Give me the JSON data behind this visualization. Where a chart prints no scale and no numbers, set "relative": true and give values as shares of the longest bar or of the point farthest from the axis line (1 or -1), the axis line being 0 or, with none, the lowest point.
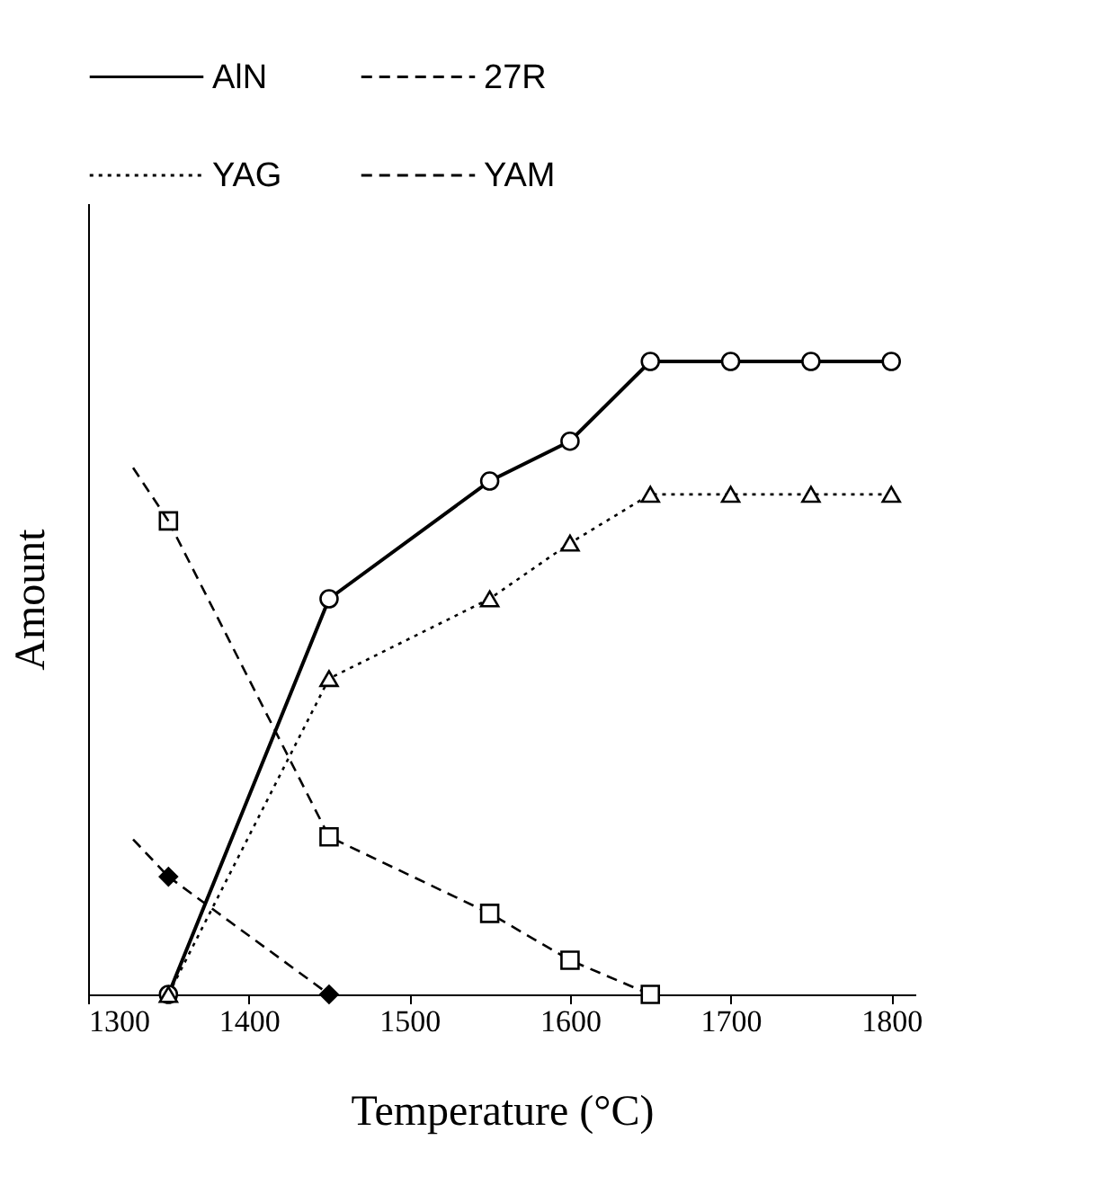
{
  "chart_data": {
    "type": "line",
    "xlabel": "Temperature (°C)",
    "ylabel": "Amount",
    "relative": true,
    "x": [
      1350,
      1450,
      1550,
      1600,
      1650,
      1700,
      1750,
      1800
    ],
    "xlim": [
      1300,
      1815
    ],
    "xticks": [
      {
        "value": 1300,
        "label": "1300"
      },
      {
        "value": 1400,
        "label": "1400"
      },
      {
        "value": 1500,
        "label": "1500"
      },
      {
        "value": 1600,
        "label": "1600"
      },
      {
        "value": 1700,
        "label": "1700"
      },
      {
        "value": 1800,
        "label": "1800"
      }
    ],
    "series": [
      {
        "name": "AlN",
        "color": "#000000",
        "marker": "circle",
        "line_style": "solid",
        "values": [
          0,
          0.625,
          0.811,
          0.874,
          1,
          1,
          1,
          1
        ]
      },
      {
        "name": "27R",
        "color": "#000000",
        "marker": "square",
        "line_style": "dashed",
        "x": [
          1350,
          1450,
          1550,
          1600,
          1650
        ],
        "values": [
          0.748,
          0.249,
          0.128,
          0.054,
          0
        ]
      },
      {
        "name": "YAG",
        "color": "#000000",
        "marker": "triangle",
        "line_style": "dotted",
        "values": [
          0,
          0.499,
          0.625,
          0.713,
          0.79,
          0.79,
          0.79,
          0.79
        ]
      },
      {
        "name": "YAM",
        "color": "#000000",
        "marker": "diamond",
        "line_style": "dashed",
        "x": [
          1350,
          1450
        ],
        "values": [
          0.186,
          0
        ]
      },
      {
        "color": "#000000",
        "marker": "none",
        "line_style": "dashed",
        "x": [
          1328,
          1350
        ],
        "values": [
          0.832,
          0.748
        ]
      },
      {
        "color": "#000000",
        "marker": "none",
        "line_style": "dashed",
        "x": [
          1328,
          1350
        ],
        "values": [
          0.245,
          0.186
        ]
      }
    ],
    "legend": "top",
    "grid": false
  }
}
